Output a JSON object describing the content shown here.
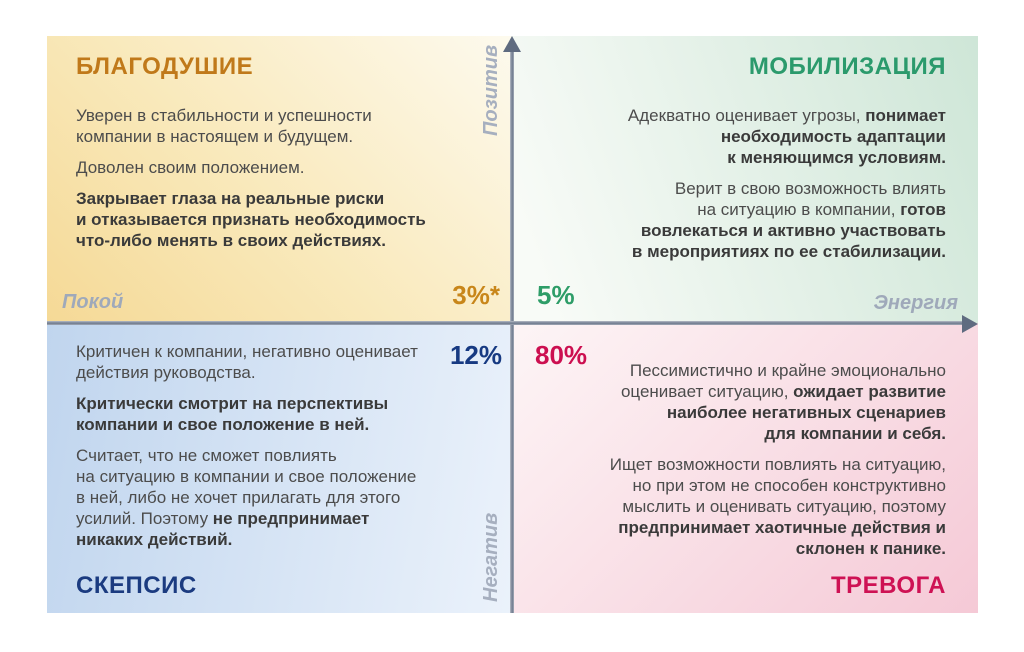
{
  "figure": {
    "type": "2x2-quadrant-matrix",
    "language": "ru",
    "description": "Employee mood states matrix: positivity/negativity vs calm/energy"
  },
  "axes": {
    "positive": "Позитив",
    "negative": "Негатив",
    "calm": "Покой",
    "energy": "Энергия"
  },
  "quadrants": {
    "complacency": {
      "title": "БЛАГОДУШИЕ",
      "percent": "3%*",
      "paragraphs": [
        [
          {
            "t": "Уверен в стабильности и успешности\nкомпании в настоящем и будущем.",
            "b": false
          }
        ],
        [
          {
            "t": "Доволен своим положением.",
            "b": false
          }
        ],
        [
          {
            "t": "Закрывает глаза на реальные риски\nи отказывается признать необходимость\nчто-либо менять в своих действиях.",
            "b": true
          }
        ]
      ]
    },
    "mobilization": {
      "title": "МОБИЛИЗАЦИЯ",
      "percent": "5%",
      "paragraphs": [
        [
          {
            "t": "Адекватно оценивает угрозы, ",
            "b": false
          },
          {
            "t": "понимает\nнеобходимость адаптации\nк меняющимся условиям.",
            "b": true
          }
        ],
        [
          {
            "t": "Верит в свою возможность влиять\nна ситуацию в компании, ",
            "b": false
          },
          {
            "t": "готов\nвовлекаться и активно участвовать\nв мероприятиях по ее стабилизации.",
            "b": true
          }
        ]
      ]
    },
    "skepticism": {
      "title": "СКЕПСИС",
      "percent": "12%",
      "paragraphs": [
        [
          {
            "t": "Критичен к компании, негативно оценивает\nдействия руководства.",
            "b": false
          }
        ],
        [
          {
            "t": "Критически смотрит на перспективы\nкомпании и свое положение в ней.",
            "b": true
          }
        ],
        [
          {
            "t": "Считает, что не сможет повлиять\nна ситуацию в компании и свое положение\nв ней, либо не хочет прилагать для этого\nусилий. Поэтому ",
            "b": false
          },
          {
            "t": "не предпринимает\nникаких действий.",
            "b": true
          }
        ]
      ]
    },
    "anxiety": {
      "title": "ТРЕВОГА",
      "percent": "80%",
      "paragraphs": [
        [
          {
            "t": "Пессимистично и крайне эмоционально\nоценивает ситуацию, ",
            "b": false
          },
          {
            "t": "ожидает развитие\nнаиболее негативных сценариев\nдля компании и себя.",
            "b": true
          }
        ],
        [
          {
            "t": "Ищет возможности повлиять на ситуацию,\nно при этом не способен конструктивно\nмыслить и оценивать ситуацию, поэтому\n",
            "b": false
          },
          {
            "t": "предпринимает хаотичные действия и\nсклонен к панике.",
            "b": true
          }
        ]
      ]
    }
  },
  "palette": {
    "complacency_accent": "#c0791a",
    "mobilization_accent": "#2b9a6c",
    "skepticism_accent": "#1b3b80",
    "anxiety_accent": "#ce1254",
    "axis_line": "#6e7a8e",
    "axis_label_gray": "#9fa9ba",
    "body_text": "#4c4c4c"
  }
}
